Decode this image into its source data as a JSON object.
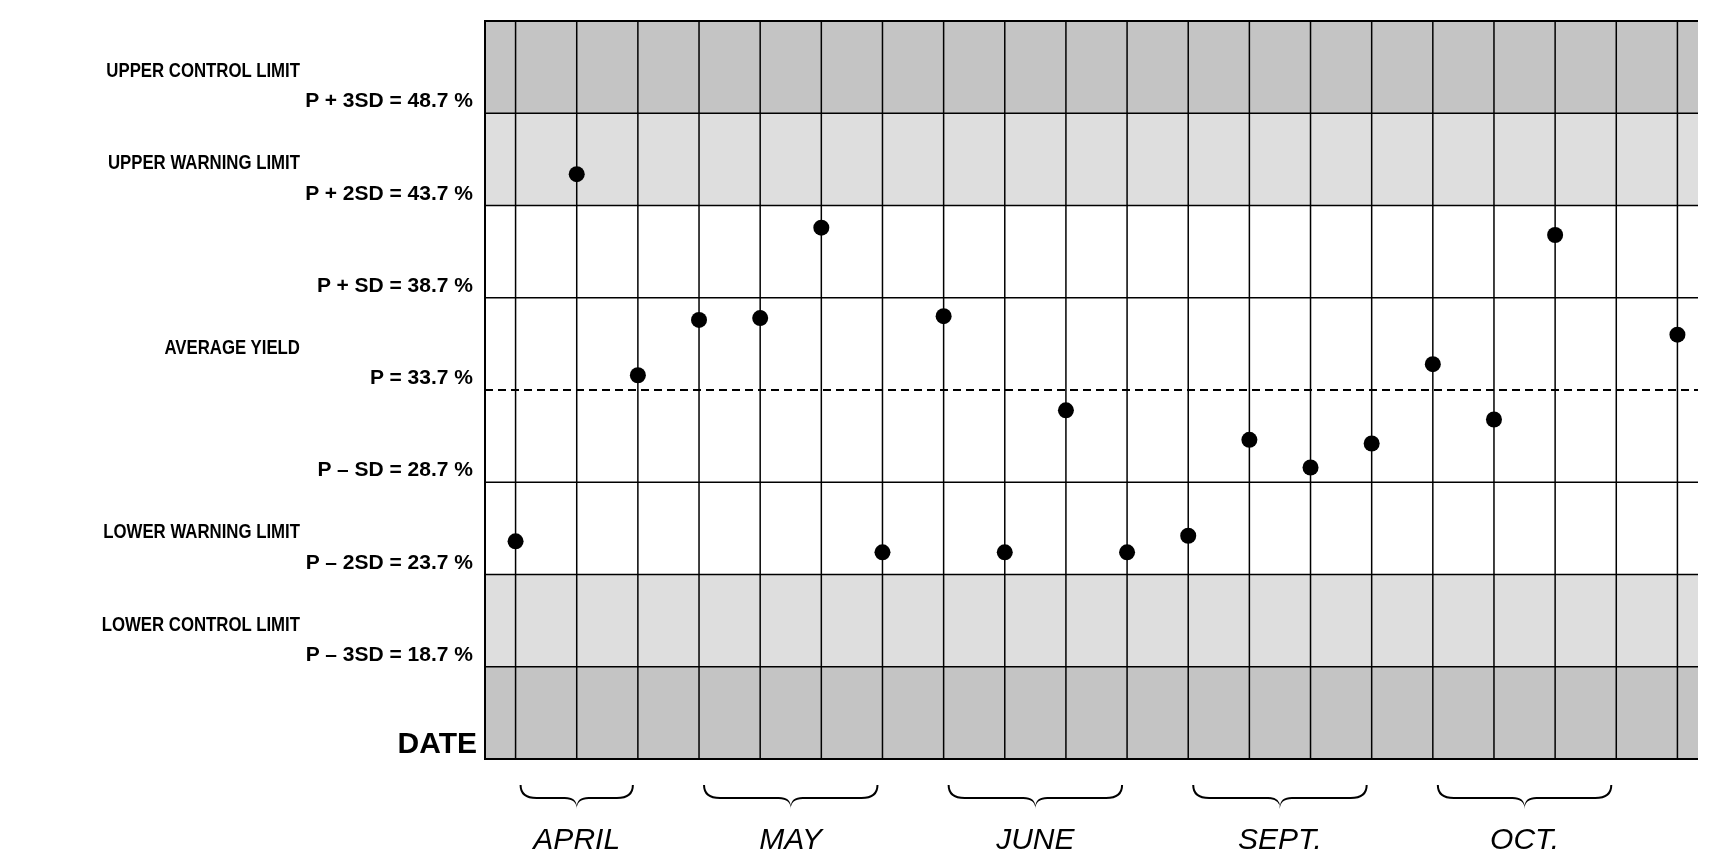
{
  "chart_data": {
    "type": "scatter",
    "xlabel": "DATE",
    "categories": [
      null,
      null,
      null,
      null,
      null,
      null,
      null,
      null,
      null,
      null,
      null,
      null,
      null,
      null,
      null,
      null,
      null,
      null,
      null,
      null
    ],
    "values": [
      25.5,
      45.4,
      34.5,
      37.5,
      37.6,
      42.5,
      24.9,
      37.7,
      24.9,
      32.6,
      24.9,
      25.8,
      31.0,
      29.5,
      30.8,
      35.1,
      32.1,
      42.1,
      null,
      36.7
    ],
    "color": "#000000",
    "marker": "circle",
    "ylim": [
      13.7,
      53.7
    ],
    "yticks": [
      {
        "value": 48.7,
        "label": "P + 3SD = 48.7 %"
      },
      {
        "value": 43.7,
        "label": "P + 2SD = 43.7 %"
      },
      {
        "value": 38.7,
        "label": "P + SD = 38.7 %"
      },
      {
        "value": 33.7,
        "label": "P = 33.7 %"
      },
      {
        "value": 28.7,
        "label": "P – SD = 28.7 %"
      },
      {
        "value": 23.7,
        "label": "P – 2SD = 23.7 %"
      },
      {
        "value": 18.7,
        "label": "P – 3SD = 18.7 %"
      }
    ],
    "ref_lines": [
      {
        "axis": "y",
        "value": 33.7,
        "label": "AVERAGE YIELD",
        "color": "#000000",
        "line_style": "dashed"
      }
    ],
    "bands": [
      {
        "axis": "y",
        "from": 48.7,
        "to": 53.7,
        "color": "#c4c4c4"
      },
      {
        "axis": "y",
        "from": 43.7,
        "to": 48.7,
        "color": "#dedede"
      },
      {
        "axis": "y",
        "from": 18.7,
        "to": 23.7,
        "color": "#dedede"
      },
      {
        "axis": "y",
        "from": 13.7,
        "to": 18.7,
        "color": "#c4c4c4"
      }
    ],
    "annotations": [
      "UPPER CONTROL LIMIT",
      "UPPER WARNING LIMIT",
      "LOWER WARNING LIMIT",
      "LOWER CONTROL LIMIT",
      "APRIL",
      "MAY",
      "JUNE",
      "SEPT.",
      "OCT."
    ],
    "grid": true
  }
}
